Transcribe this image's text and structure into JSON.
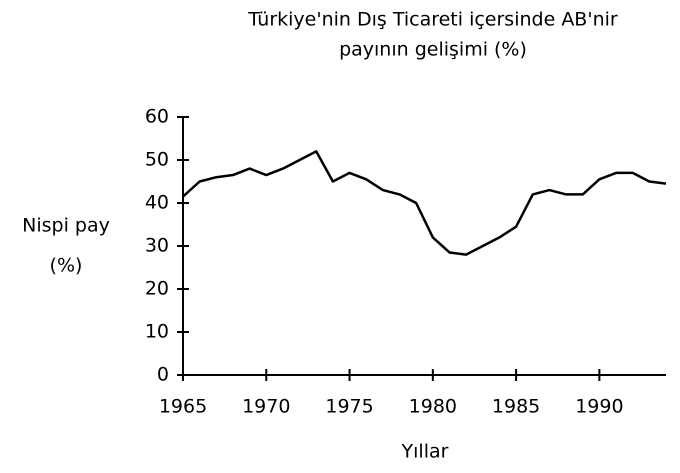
{
  "chart_data": {
    "type": "line",
    "title": [
      "Türkiye'nin Dış Ticareti içersinde AB'nir",
      "payının gelişimi (%)"
    ],
    "ylabel": [
      "Nispi pay",
      "(%)"
    ],
    "xlabel": "Yıllar",
    "x": [
      1965,
      1966,
      1967,
      1968,
      1969,
      1970,
      1971,
      1972,
      1973,
      1974,
      1975,
      1976,
      1977,
      1978,
      1979,
      1980,
      1981,
      1982,
      1983,
      1984,
      1985,
      1986,
      1987,
      1988,
      1989,
      1990,
      1991,
      1992,
      1993,
      1994
    ],
    "series": [
      {
        "color": "#000000",
        "values": [
          41.5,
          45,
          46,
          46.5,
          48,
          46.5,
          48,
          50,
          52,
          45,
          47,
          45.5,
          43,
          42,
          40,
          32,
          28.5,
          28,
          30,
          32,
          34.5,
          42,
          43,
          42,
          42,
          45.5,
          47,
          47,
          45,
          44.5
        ]
      }
    ],
    "xlim": [
      1965,
      1994
    ],
    "xticks": [
      1965,
      1970,
      1975,
      1980,
      1985,
      1990
    ],
    "ylim": [
      0,
      60
    ],
    "yticks": [
      0,
      10,
      20,
      30,
      40,
      50,
      60
    ]
  }
}
